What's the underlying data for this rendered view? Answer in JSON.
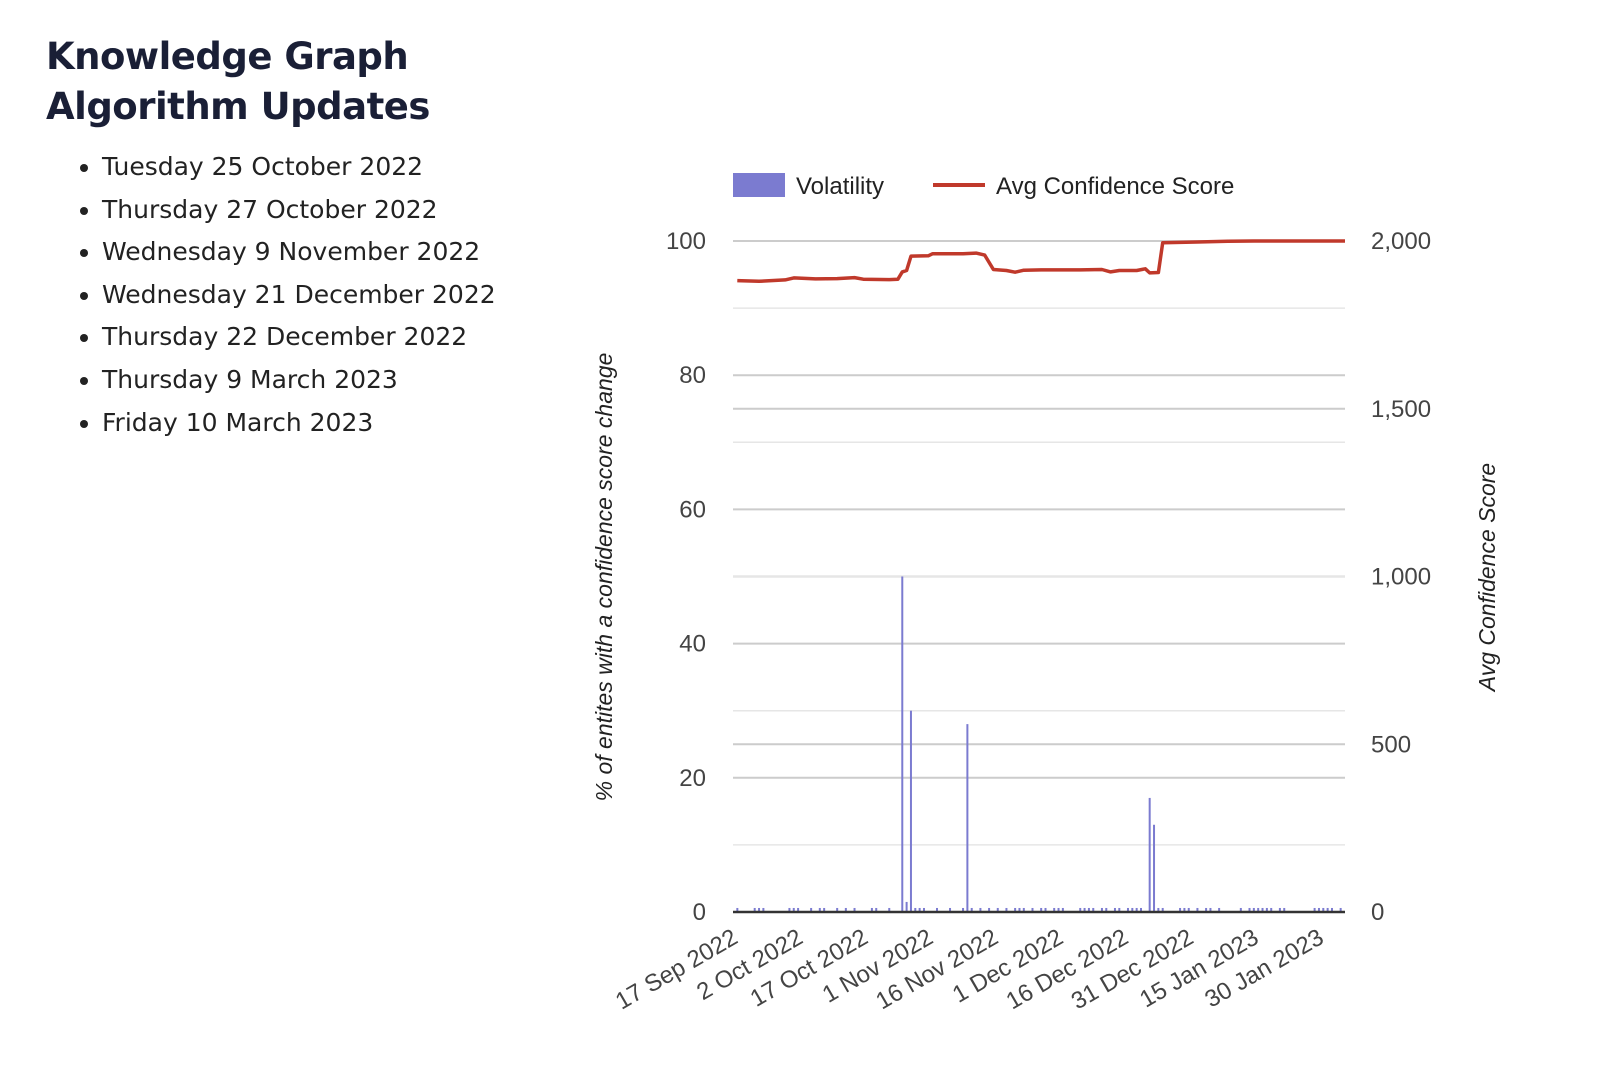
{
  "page": {
    "title": "Knowledge Graph Algorithm Updates",
    "updates": [
      "Tuesday 25 October 2022",
      "Thursday 27 October 2022",
      "Wednesday 9 November 2022",
      "Wednesday 21 December 2022",
      "Thursday 22 December 2022",
      "Thursday 9 March 2023",
      "Friday 10 March 2023"
    ]
  },
  "chart_data": {
    "type": "bar+line",
    "title": "",
    "xlabel": "",
    "ylabel": "% of entites with a confidence score change",
    "y2label": "Avg Confidence Score",
    "xlim": [
      "2022-09-16",
      "2023-02-04"
    ],
    "ylim": [
      0,
      100
    ],
    "y2lim": [
      0,
      2000
    ],
    "x_ticks": [
      "17 Sep 2022",
      "2 Oct 2022",
      "17 Oct 2022",
      "1 Nov 2022",
      "16 Nov 2022",
      "1 Dec 2022",
      "16 Dec 2022",
      "31 Dec 2022",
      "15 Jan 2023",
      "30 Jan 2023"
    ],
    "x_tick_dates": [
      "2022-09-17",
      "2022-10-02",
      "2022-10-17",
      "2022-11-01",
      "2022-11-16",
      "2022-12-01",
      "2022-12-16",
      "2022-12-31",
      "2023-01-15",
      "2023-01-30"
    ],
    "y_ticks": [
      "0",
      "20",
      "40",
      "60",
      "80",
      "100"
    ],
    "y2_ticks": [
      "0",
      "500",
      "1,000",
      "1,500",
      "2,000"
    ],
    "grid": true,
    "legend": {
      "position": "top",
      "entries": [
        "Volatility",
        "Avg Confidence Score"
      ]
    },
    "colors": {
      "Volatility": "#7b7bd0",
      "Avg Confidence Score": "#c0392b",
      "grid": "#cccccc"
    },
    "series": [
      {
        "name": "Volatility",
        "axis": "left",
        "type": "bar",
        "points": [
          [
            "2022-09-17",
            0.6
          ],
          [
            "2022-09-21",
            0.6
          ],
          [
            "2022-09-22",
            0.6
          ],
          [
            "2022-09-23",
            0.6
          ],
          [
            "2022-09-29",
            0.6
          ],
          [
            "2022-09-30",
            0.6
          ],
          [
            "2022-10-01",
            0.6
          ],
          [
            "2022-10-04",
            0.6
          ],
          [
            "2022-10-06",
            0.6
          ],
          [
            "2022-10-07",
            0.6
          ],
          [
            "2022-10-10",
            0.6
          ],
          [
            "2022-10-12",
            0.6
          ],
          [
            "2022-10-14",
            0.6
          ],
          [
            "2022-10-18",
            0.6
          ],
          [
            "2022-10-19",
            0.6
          ],
          [
            "2022-10-22",
            0.6
          ],
          [
            "2022-10-25",
            50
          ],
          [
            "2022-10-26",
            1.5
          ],
          [
            "2022-10-27",
            30
          ],
          [
            "2022-10-28",
            0.6
          ],
          [
            "2022-10-29",
            0.6
          ],
          [
            "2022-10-30",
            0.6
          ],
          [
            "2022-11-02",
            0.6
          ],
          [
            "2022-11-05",
            0.6
          ],
          [
            "2022-11-08",
            0.6
          ],
          [
            "2022-11-09",
            28
          ],
          [
            "2022-11-10",
            0.6
          ],
          [
            "2022-11-12",
            0.6
          ],
          [
            "2022-11-14",
            0.6
          ],
          [
            "2022-11-16",
            0.6
          ],
          [
            "2022-11-18",
            0.6
          ],
          [
            "2022-11-20",
            0.6
          ],
          [
            "2022-11-21",
            0.6
          ],
          [
            "2022-11-22",
            0.6
          ],
          [
            "2022-11-24",
            0.6
          ],
          [
            "2022-11-26",
            0.6
          ],
          [
            "2022-11-27",
            0.6
          ],
          [
            "2022-11-29",
            0.6
          ],
          [
            "2022-11-30",
            0.6
          ],
          [
            "2022-12-01",
            0.6
          ],
          [
            "2022-12-05",
            0.6
          ],
          [
            "2022-12-06",
            0.6
          ],
          [
            "2022-12-07",
            0.6
          ],
          [
            "2022-12-08",
            0.6
          ],
          [
            "2022-12-10",
            0.6
          ],
          [
            "2022-12-11",
            0.6
          ],
          [
            "2022-12-13",
            0.6
          ],
          [
            "2022-12-14",
            0.6
          ],
          [
            "2022-12-16",
            0.6
          ],
          [
            "2022-12-17",
            0.6
          ],
          [
            "2022-12-18",
            0.6
          ],
          [
            "2022-12-19",
            0.6
          ],
          [
            "2022-12-21",
            17
          ],
          [
            "2022-12-22",
            13
          ],
          [
            "2022-12-23",
            0.6
          ],
          [
            "2022-12-24",
            0.6
          ],
          [
            "2022-12-28",
            0.6
          ],
          [
            "2022-12-29",
            0.6
          ],
          [
            "2022-12-30",
            0.6
          ],
          [
            "2023-01-01",
            0.6
          ],
          [
            "2023-01-03",
            0.6
          ],
          [
            "2023-01-04",
            0.6
          ],
          [
            "2023-01-06",
            0.6
          ],
          [
            "2023-01-11",
            0.6
          ],
          [
            "2023-01-13",
            0.6
          ],
          [
            "2023-01-14",
            0.6
          ],
          [
            "2023-01-15",
            0.6
          ],
          [
            "2023-01-16",
            0.6
          ],
          [
            "2023-01-17",
            0.6
          ],
          [
            "2023-01-18",
            0.6
          ],
          [
            "2023-01-20",
            0.6
          ],
          [
            "2023-01-21",
            0.6
          ],
          [
            "2023-01-28",
            0.6
          ],
          [
            "2023-01-29",
            0.6
          ],
          [
            "2023-01-30",
            0.6
          ],
          [
            "2023-01-31",
            0.6
          ],
          [
            "2023-02-01",
            0.6
          ],
          [
            "2023-02-03",
            0.6
          ]
        ]
      },
      {
        "name": "Avg Confidence Score",
        "axis": "right",
        "type": "line",
        "points": [
          [
            "2022-09-17",
            1882
          ],
          [
            "2022-09-22",
            1880
          ],
          [
            "2022-09-28",
            1884
          ],
          [
            "2022-09-30",
            1890
          ],
          [
            "2022-10-05",
            1887
          ],
          [
            "2022-10-10",
            1888
          ],
          [
            "2022-10-14",
            1891
          ],
          [
            "2022-10-16",
            1886
          ],
          [
            "2022-10-22",
            1885
          ],
          [
            "2022-10-24",
            1886
          ],
          [
            "2022-10-25",
            1908
          ],
          [
            "2022-10-26",
            1912
          ],
          [
            "2022-10-27",
            1955
          ],
          [
            "2022-10-31",
            1956
          ],
          [
            "2022-11-01",
            1962
          ],
          [
            "2022-11-08",
            1962
          ],
          [
            "2022-11-11",
            1964
          ],
          [
            "2022-11-13",
            1958
          ],
          [
            "2022-11-15",
            1915
          ],
          [
            "2022-11-18",
            1912
          ],
          [
            "2022-11-20",
            1907
          ],
          [
            "2022-11-22",
            1913
          ],
          [
            "2022-11-26",
            1914
          ],
          [
            "2022-12-05",
            1914
          ],
          [
            "2022-12-10",
            1915
          ],
          [
            "2022-12-12",
            1908
          ],
          [
            "2022-12-14",
            1912
          ],
          [
            "2022-12-18",
            1912
          ],
          [
            "2022-12-20",
            1917
          ],
          [
            "2022-12-21",
            1905
          ],
          [
            "2022-12-23",
            1906
          ],
          [
            "2022-12-24",
            1995
          ],
          [
            "2023-01-01",
            1997
          ],
          [
            "2023-01-08",
            1999
          ],
          [
            "2023-01-14",
            2000
          ],
          [
            "2023-02-04",
            2000
          ]
        ]
      }
    ]
  }
}
